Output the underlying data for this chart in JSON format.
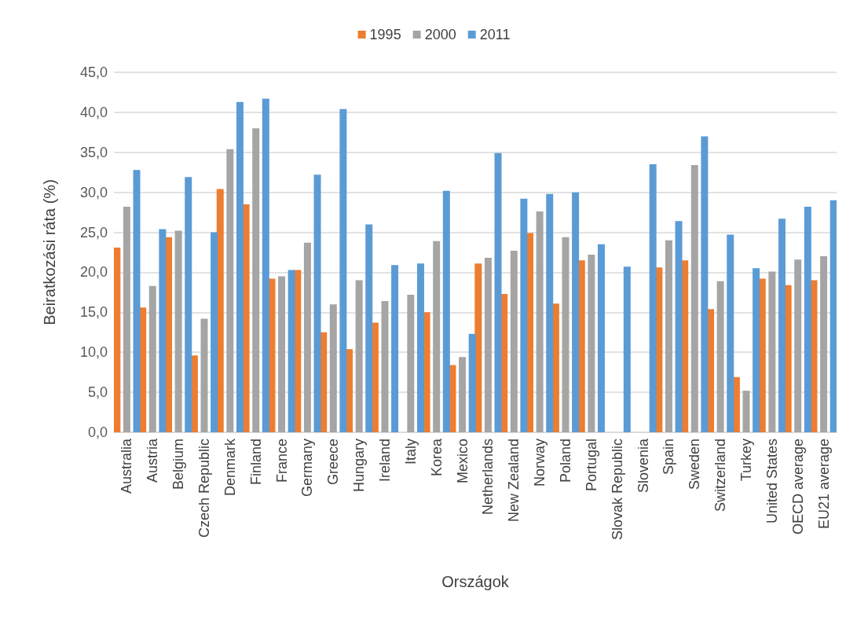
{
  "chart_data": {
    "type": "bar",
    "xlabel": "Országok",
    "ylabel": "Beiratkozási ráta (%)",
    "categories": [
      "Australia",
      "Austria",
      "Belgium",
      "Czech Republic",
      "Denmark",
      "Finland",
      "France",
      "Germany",
      "Greece",
      "Hungary",
      "Ireland",
      "Italy",
      "Korea",
      "Mexico",
      "Netherlands",
      "New Zealand",
      "Norway",
      "Poland",
      "Portugal",
      "Slovak Republic",
      "Slovenia",
      "Spain",
      "Sweden",
      "Switzerland",
      "Turkey",
      "United States",
      "OECD average",
      "EU21 average"
    ],
    "series": [
      {
        "name": "1995",
        "color": "#ed7d31",
        "values": [
          23.1,
          15.6,
          24.4,
          9.6,
          30.4,
          28.5,
          19.2,
          20.3,
          12.5,
          10.4,
          13.7,
          null,
          15.0,
          8.4,
          21.1,
          17.3,
          24.9,
          16.1,
          21.5,
          null,
          null,
          20.6,
          21.5,
          15.4,
          6.9,
          19.2,
          18.4,
          19.0
        ]
      },
      {
        "name": "2000",
        "color": "#a5a5a5",
        "values": [
          28.2,
          18.3,
          25.2,
          14.2,
          35.4,
          38.0,
          19.5,
          23.7,
          16.0,
          19.0,
          16.4,
          17.2,
          23.9,
          9.4,
          21.8,
          22.7,
          27.6,
          24.4,
          22.2,
          null,
          null,
          24.0,
          33.4,
          18.9,
          5.2,
          20.1,
          21.6,
          22.0
        ]
      },
      {
        "name": "2011",
        "color": "#5b9bd5",
        "values": [
          32.8,
          25.4,
          31.9,
          25.0,
          41.3,
          41.7,
          20.3,
          32.2,
          40.4,
          26.0,
          20.9,
          21.1,
          30.2,
          12.3,
          34.9,
          29.2,
          29.8,
          30.0,
          23.5,
          20.7,
          33.5,
          26.4,
          37.0,
          24.7,
          20.5,
          26.7,
          28.2,
          29.0
        ]
      }
    ],
    "ylim": [
      0,
      45
    ],
    "yticks": [
      {
        "value": 0,
        "label": "0,0"
      },
      {
        "value": 5,
        "label": "5,0"
      },
      {
        "value": 10,
        "label": "10,0"
      },
      {
        "value": 15,
        "label": "15,0"
      },
      {
        "value": 20,
        "label": "20,0"
      },
      {
        "value": 25,
        "label": "25,0"
      },
      {
        "value": 30,
        "label": "30,0"
      },
      {
        "value": 35,
        "label": "35,0"
      },
      {
        "value": 40,
        "label": "40,0"
      },
      {
        "value": 45,
        "label": "45,0"
      }
    ],
    "grid": "y",
    "legend": "top"
  }
}
